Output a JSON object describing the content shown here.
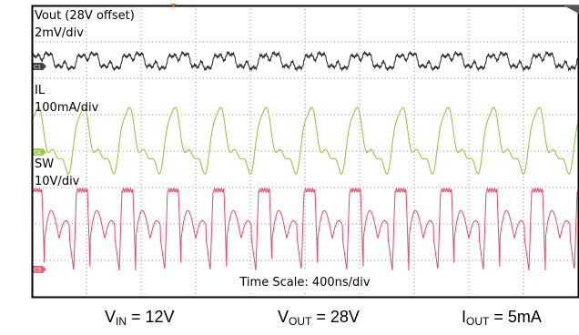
{
  "chart_data": {
    "type": "line",
    "title": "",
    "x_scale": "400ns/div",
    "time_scale_label": "Time Scale: 400ns/div",
    "x_divisions": 10,
    "y_divisions": 8,
    "grid": true,
    "series": [
      {
        "name": "Vout (28V offset)",
        "scale": "2mV/div",
        "color": "#222222",
        "channel_marker": "C1",
        "waveform": "output ripple, small irregular oscillation",
        "periods": 12
      },
      {
        "name": "IL",
        "scale": "100mA/div",
        "color": "#8fbf3a",
        "channel_marker": "C4",
        "waveform": "inductor current, triangular ringing bursts",
        "periods": 12
      },
      {
        "name": "SW",
        "scale": "10V/div",
        "color": "#e04a66",
        "channel_marker": "C3",
        "waveform": "switch node, rectangular pulses with ringing",
        "periods": 12
      }
    ]
  },
  "conditions": {
    "vin": {
      "sym": "V",
      "sub": "IN",
      "val": " = 12V"
    },
    "vout": {
      "sym": "V",
      "sub": "OUT",
      "val": " = 28V"
    },
    "iout": {
      "sym": "I",
      "sub": "OUT",
      "val": " = 5mA"
    }
  }
}
